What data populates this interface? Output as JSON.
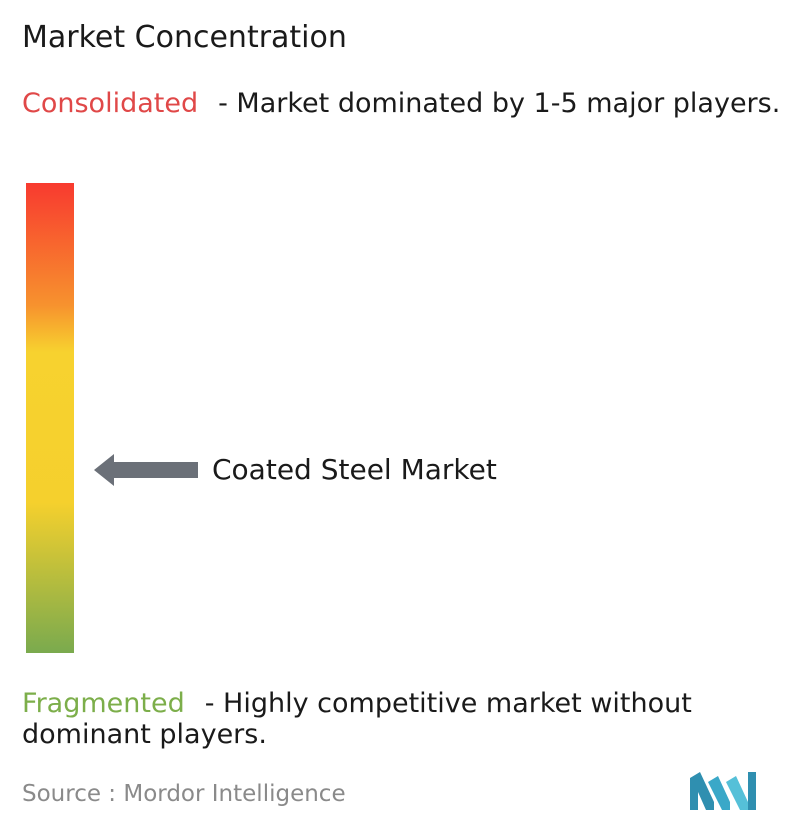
{
  "chart_data": {
    "type": "concentration-scale",
    "title": "Market Concentration",
    "top": {
      "label": "Consolidated",
      "description": "- Market dominated by 1-5 major players.",
      "color": "#e04848"
    },
    "bottom": {
      "label": "Fragmented",
      "description": "- Highly competitive market without dominant players.",
      "color": "#7cae4a"
    },
    "gradient_colors": [
      "#f83a2f",
      "#f7922e",
      "#f7d22f",
      "#f5d02d",
      "#7aaa4e"
    ],
    "marker": {
      "label": "Coated Steel Market",
      "position_from_top": 0.61,
      "color": "#6b7078"
    },
    "source": "Source :  Mordor Intelligence",
    "logo_color": "#3aa8c8"
  }
}
